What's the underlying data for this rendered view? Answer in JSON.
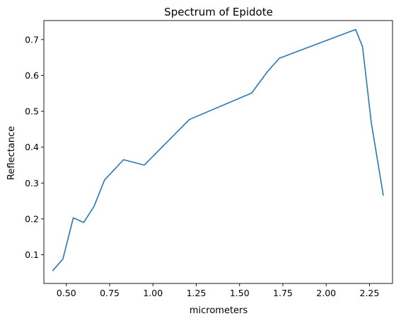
{
  "chart_data": {
    "type": "line",
    "title": "Spectrum of Epidote",
    "xlabel": "micrometers",
    "ylabel": "Reflectance",
    "xlim": [
      0.37,
      2.383
    ],
    "ylim": [
      0.02,
      0.753
    ],
    "xticks": [
      "0.50",
      "0.75",
      "1.00",
      "1.25",
      "1.50",
      "1.75",
      "2.00",
      "2.25"
    ],
    "xtick_values": [
      0.5,
      0.75,
      1.0,
      1.25,
      1.5,
      1.75,
      2.0,
      2.25
    ],
    "yticks": [
      "0.1",
      "0.2",
      "0.3",
      "0.4",
      "0.5",
      "0.6",
      "0.7"
    ],
    "ytick_values": [
      0.1,
      0.2,
      0.3,
      0.4,
      0.5,
      0.6,
      0.7
    ],
    "grid": false,
    "line_color": "#2878b5",
    "series": [
      {
        "x": [
          0.42,
          0.48,
          0.54,
          0.6,
          0.66,
          0.72,
          0.83,
          0.95,
          1.21,
          1.57,
          1.66,
          1.73,
          2.17,
          2.21,
          2.26,
          2.33
        ],
        "y": [
          0.055,
          0.088,
          0.203,
          0.19,
          0.235,
          0.308,
          0.365,
          0.35,
          0.477,
          0.551,
          0.61,
          0.648,
          0.728,
          0.68,
          0.47,
          0.265
        ]
      }
    ]
  }
}
